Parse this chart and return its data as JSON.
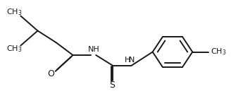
{
  "bg": "#ffffff",
  "bc": "#1a1a1a",
  "lw": 1.4,
  "fs": 8.0,
  "figsize": [
    3.45,
    1.5
  ],
  "dpi": 100,
  "xlim": [
    0.0,
    10.0
  ],
  "ylim": [
    0.0,
    5.0
  ]
}
